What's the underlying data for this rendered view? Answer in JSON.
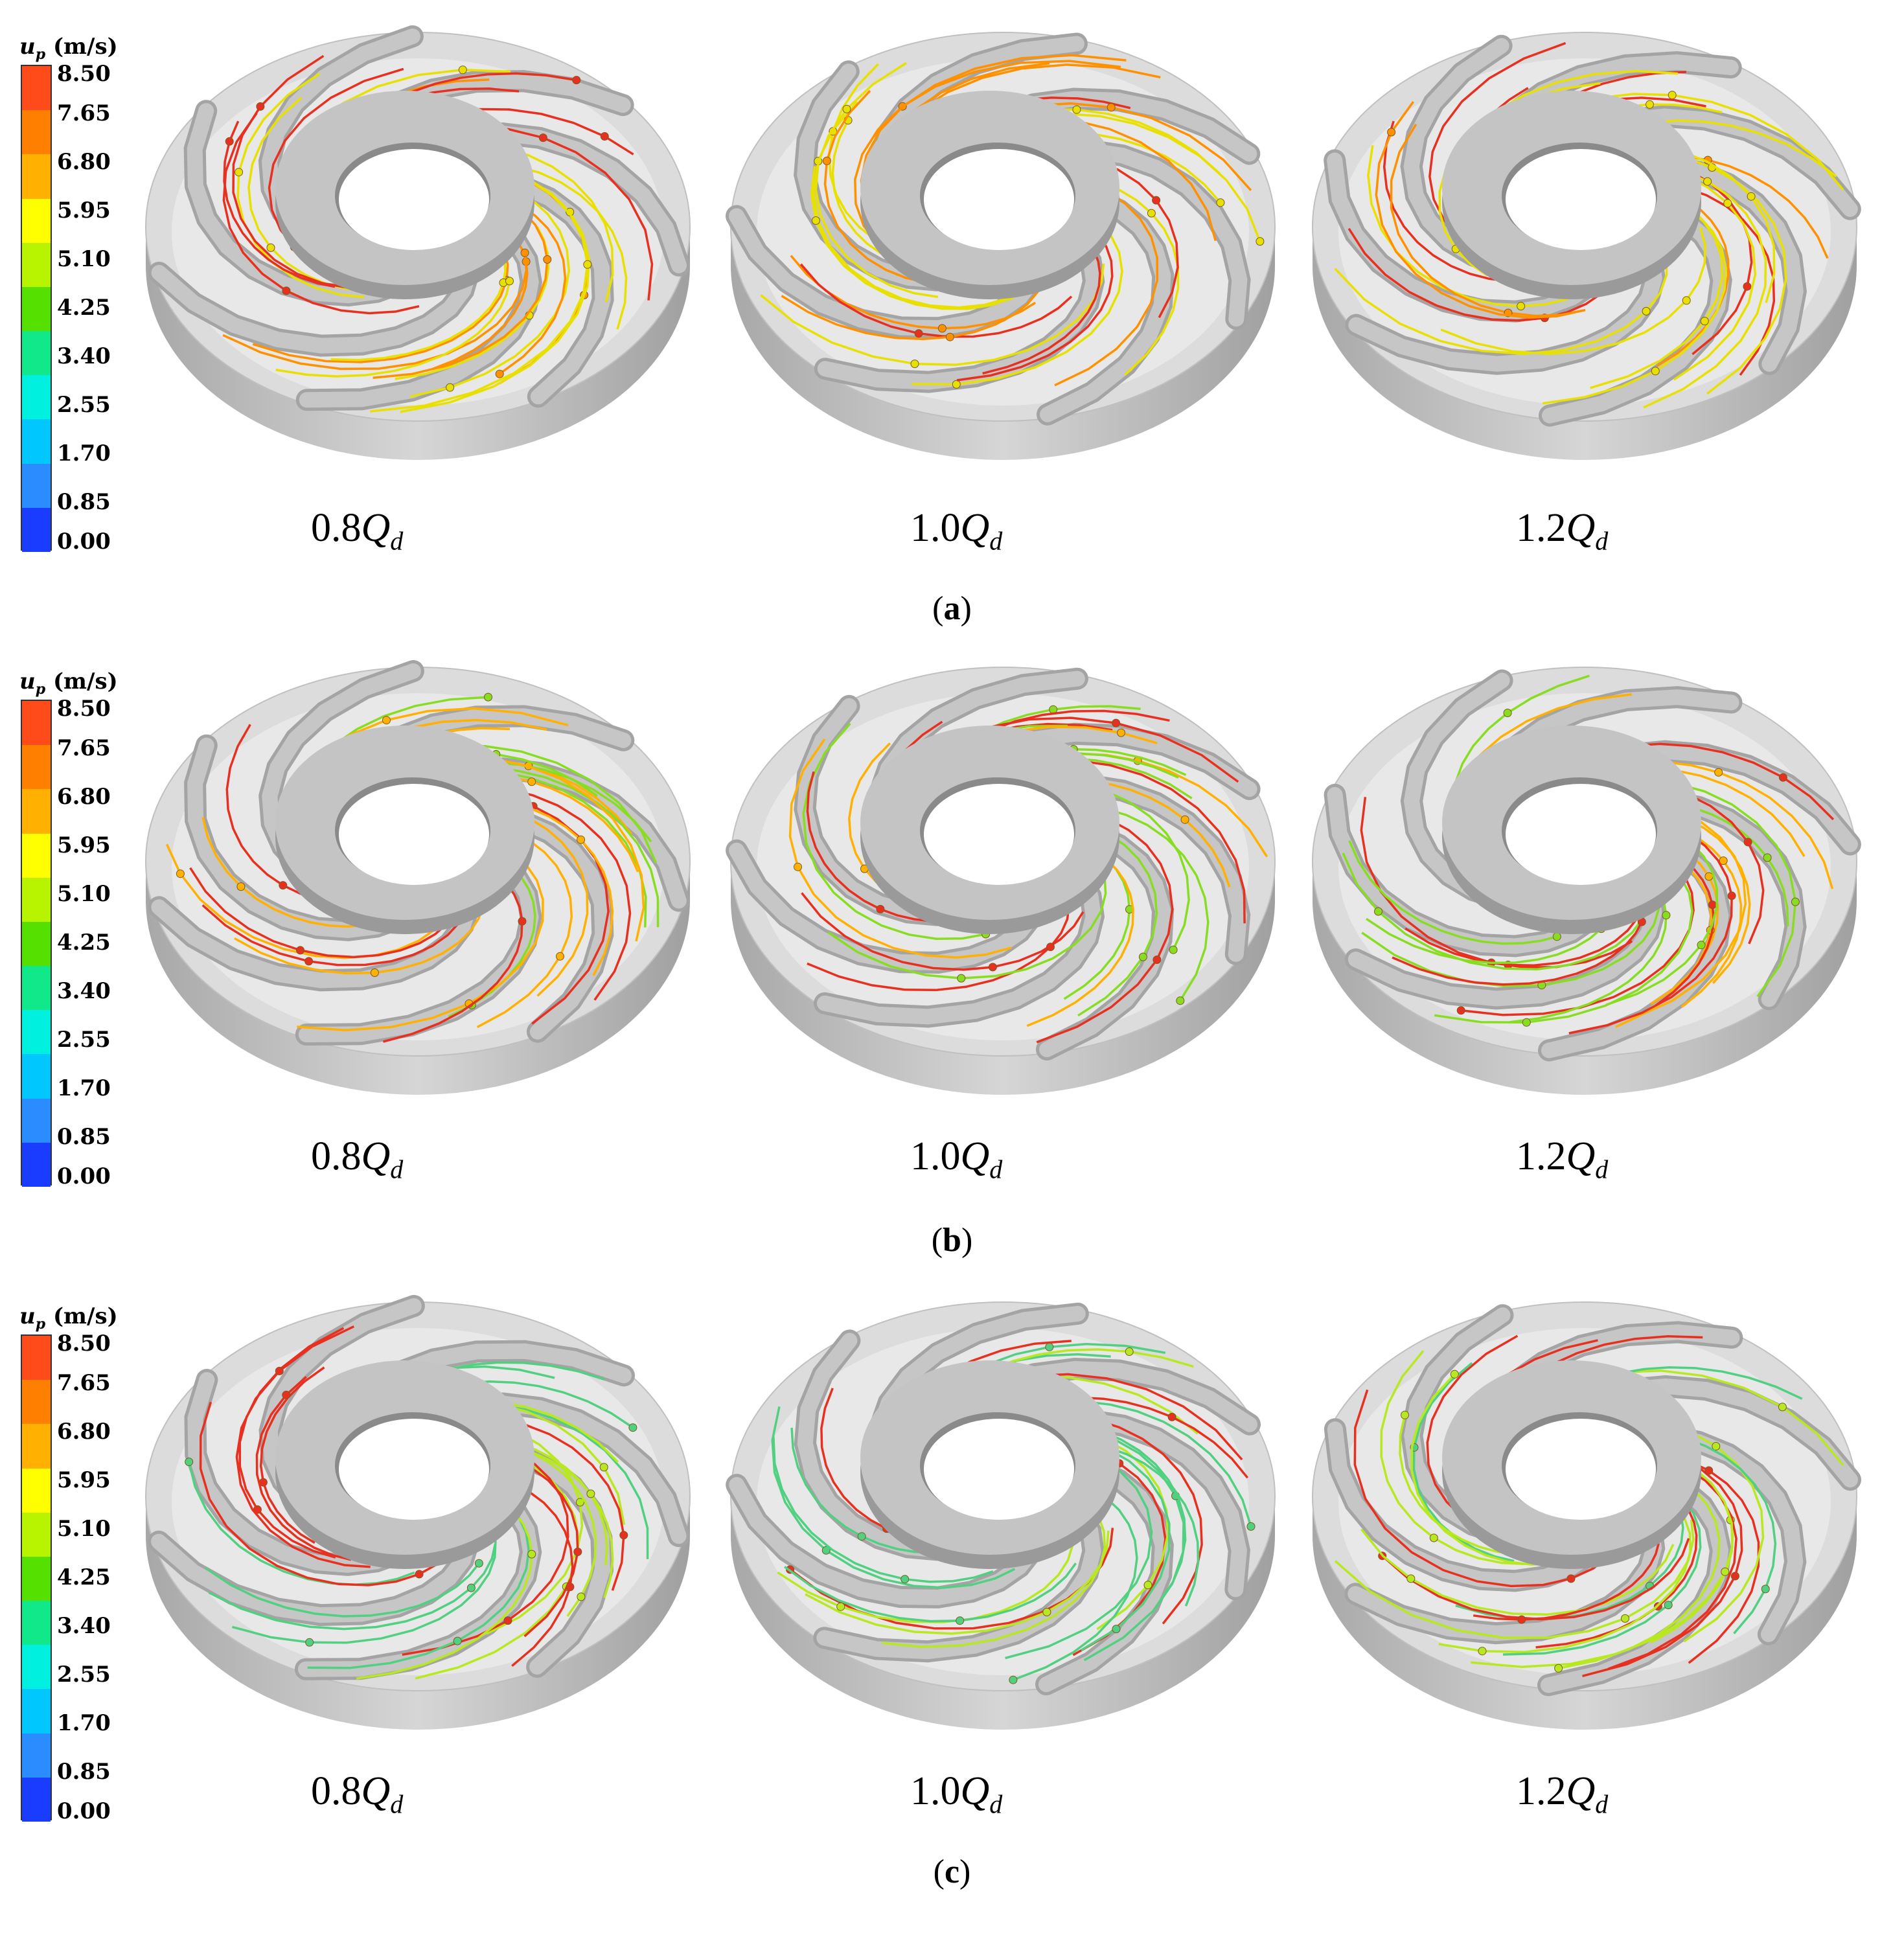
{
  "legend": {
    "symbol": "u",
    "subscript": "p",
    "unit": "(m/s)",
    "ticks": [
      "8.50",
      "7.65",
      "6.80",
      "5.95",
      "5.10",
      "4.25",
      "3.40",
      "2.55",
      "1.70",
      "0.85",
      "0.00"
    ],
    "colors": [
      "#ff4a1a",
      "#ff7f00",
      "#ffb000",
      "#ffff00",
      "#b8f400",
      "#55e000",
      "#10e88a",
      "#00f0e0",
      "#00c8ff",
      "#2a8cff",
      "#1a3cff"
    ]
  },
  "conditions": [
    {
      "prefix": "0.8",
      "q": "Q",
      "sub": "d"
    },
    {
      "prefix": "1.0",
      "q": "Q",
      "sub": "d"
    },
    {
      "prefix": "1.2",
      "q": "Q",
      "sub": "d"
    }
  ],
  "panels": [
    {
      "open": "(",
      "letter": "a",
      "close": ")"
    },
    {
      "open": "(",
      "letter": "b",
      "close": ")"
    },
    {
      "open": "(",
      "letter": "c",
      "close": ")"
    }
  ],
  "dominant_colors": {
    "a": [
      "#e83020",
      "#ff9000",
      "#e8e000"
    ],
    "b": [
      "#e83020",
      "#ffb000",
      "#88dd22"
    ],
    "c": [
      "#b8e820",
      "#50d080",
      "#e83020"
    ]
  }
}
